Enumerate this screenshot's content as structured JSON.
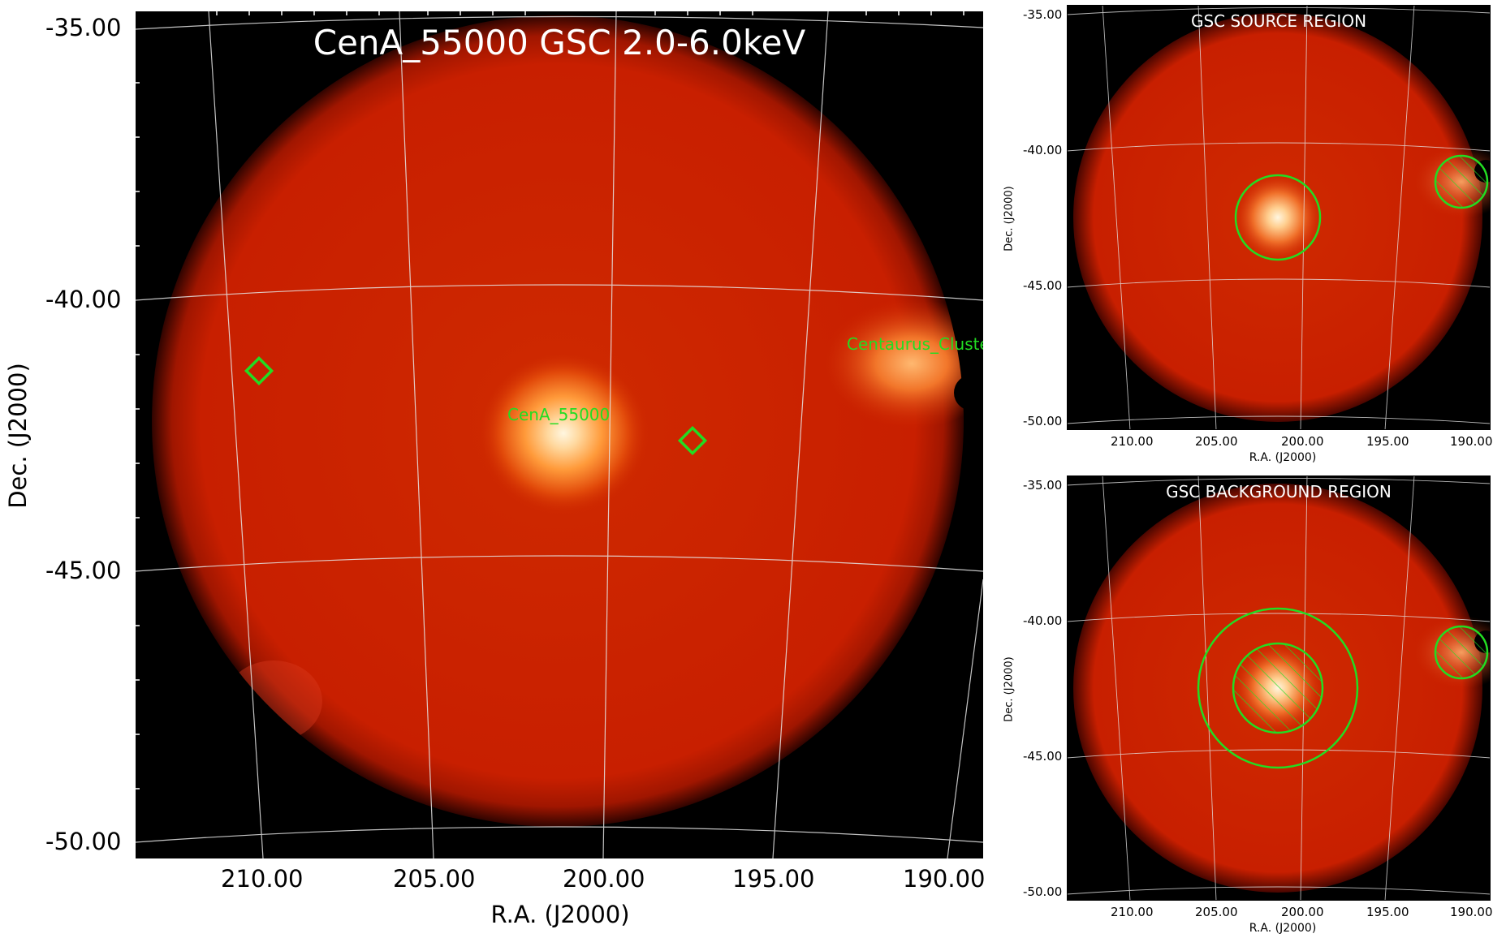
{
  "main": {
    "title": "CenA_55000 GSC 2.0-6.0keV",
    "xlabel": "R.A. (J2000)",
    "ylabel": "Dec. (J2000)",
    "xticks": [
      "210.00",
      "205.00",
      "200.00",
      "195.00",
      "190.00"
    ],
    "yticks": [
      "-35.00",
      "-40.00",
      "-45.00",
      "-50.00"
    ],
    "sources": [
      {
        "label": "CenA_55000"
      },
      {
        "label": "Centaurus_Cluster"
      }
    ]
  },
  "source_panel": {
    "title": "GSC SOURCE REGION",
    "xlabel": "R.A. (J2000)",
    "ylabel": "Dec. (J2000)",
    "xticks": [
      "210.00",
      "205.00",
      "200.00",
      "195.00",
      "190.00"
    ],
    "yticks": [
      "-35.00",
      "-40.00",
      "-45.00",
      "-50.00"
    ]
  },
  "background_panel": {
    "title": "GSC BACKGROUND REGION",
    "xlabel": "R.A. (J2000)",
    "ylabel": "Dec. (J2000)",
    "xticks": [
      "210.00",
      "205.00",
      "200.00",
      "195.00",
      "190.00"
    ],
    "yticks": [
      "-35.00",
      "-40.00",
      "-45.00",
      "-50.00"
    ]
  },
  "colors": {
    "background": "#000000",
    "field": "#cc2200",
    "source_core": "#ffe8c0",
    "region": "#22dd22",
    "grid": "#e6e6e6"
  }
}
